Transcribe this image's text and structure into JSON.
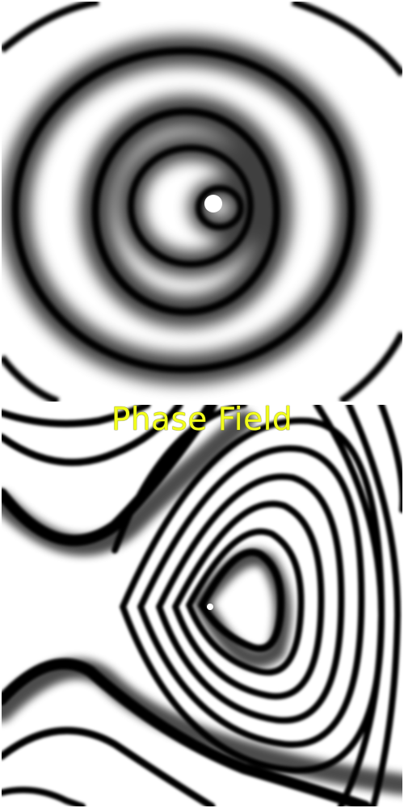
{
  "caption": {
    "text": "Phase Field",
    "color": "#f2ff1a"
  },
  "panels": [
    {
      "name": "amplitude-field",
      "pattern": "concentric-rings",
      "fringe_color": "#000000",
      "background": "#ffffff"
    },
    {
      "name": "phase-field",
      "pattern": "contour-fringes",
      "fringe_color": "#000000",
      "background": "#ffffff"
    }
  ]
}
